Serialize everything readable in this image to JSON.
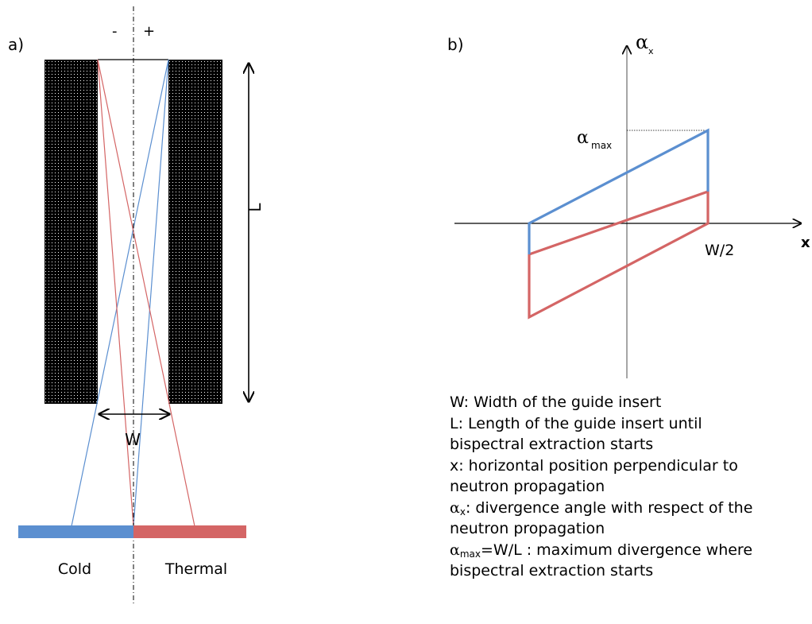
{
  "panel_a": {
    "label": "a)",
    "minus_sign": "-",
    "plus_sign": "+",
    "length_label": "L",
    "width_label": "W",
    "cold_label": "Cold",
    "thermal_label": "Thermal",
    "cold_color": "#5b8fd0",
    "thermal_color": "#d46565"
  },
  "panel_b": {
    "label": "b)",
    "y_axis_symbol": "α",
    "y_axis_sub": "x",
    "x_axis_label": "x",
    "alpha_max_symbol": "α",
    "alpha_max_sub": "max",
    "w2_label": "W/2"
  },
  "legend": {
    "w_def": "W: Width of the guide insert",
    "l_def_1": "L: Length of the guide insert until",
    "l_def_2": "bispectral extraction starts",
    "x_def_1": "x:  horizontal position perpendicular to",
    "x_def_2": "neutron propagation",
    "ax_symbol": "α",
    "ax_sub": "x",
    "ax_def_1": ": divergence angle with respect of the",
    "ax_def_2": "neutron propagation",
    "amax_symbol": "α",
    "amax_sub": "max",
    "amax_def_1": "=W/L : maximum divergence where",
    "amax_def_2": "bispectral extraction starts"
  }
}
